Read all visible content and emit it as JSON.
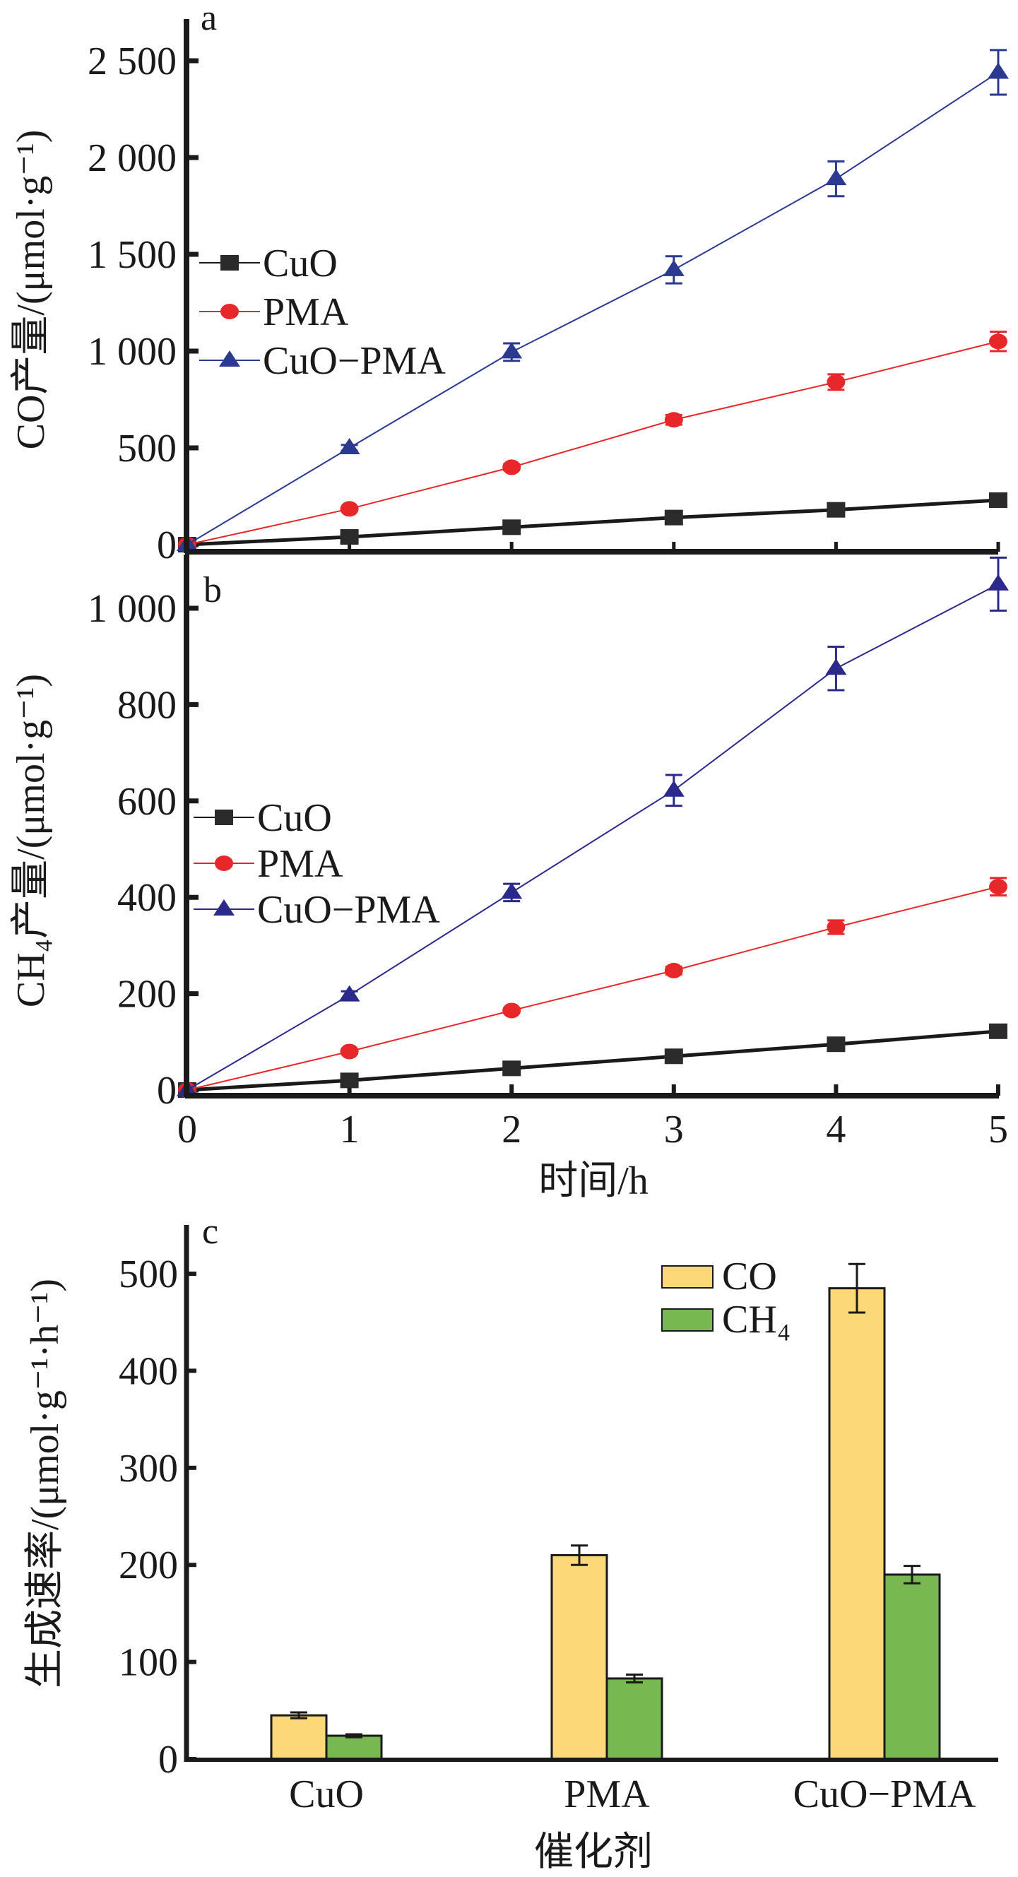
{
  "chart_data": [
    {
      "id": "a",
      "type": "line",
      "panel_label": "a",
      "title": "",
      "xlabel": "",
      "ylabel": "CO产量/(μmol·g⁻¹)",
      "x": [
        0,
        1,
        2,
        3,
        4,
        5
      ],
      "xlim": [
        0,
        5
      ],
      "ylim": [
        0,
        2650
      ],
      "yticks": [
        0,
        500,
        1000,
        1500,
        2000,
        2500
      ],
      "ytick_labels": [
        "0",
        "500",
        "1 000",
        "1 500",
        "2 000",
        "2 500"
      ],
      "legend_position": "center-left",
      "series": [
        {
          "name": "CuO",
          "color": "#1a1a1a",
          "marker": "square",
          "values": [
            0,
            40,
            90,
            140,
            180,
            230
          ],
          "errors": [
            0,
            0,
            0,
            0,
            0,
            0
          ]
        },
        {
          "name": "PMA",
          "color": "#e8272a",
          "marker": "circle",
          "values": [
            0,
            185,
            400,
            645,
            840,
            1050
          ],
          "errors": [
            0,
            10,
            15,
            25,
            40,
            50
          ]
        },
        {
          "name": "CuO−PMA",
          "color": "#2b3990",
          "marker": "triangle",
          "values": [
            0,
            500,
            995,
            1420,
            1890,
            2440
          ],
          "errors": [
            0,
            15,
            45,
            70,
            90,
            115
          ]
        }
      ]
    },
    {
      "id": "b",
      "type": "line",
      "panel_label": "b",
      "title": "",
      "xlabel": "时间/h",
      "ylabel": "CH₄产量/(μmol·g⁻¹)",
      "x": [
        0,
        1,
        2,
        3,
        4,
        5
      ],
      "xlim": [
        0,
        5
      ],
      "xticks": [
        0,
        1,
        2,
        3,
        4,
        5
      ],
      "xtick_labels": [
        "0",
        "1",
        "2",
        "3",
        "4",
        "5"
      ],
      "ylim": [
        0,
        1080
      ],
      "yticks": [
        0,
        200,
        400,
        600,
        800,
        1000
      ],
      "ytick_labels": [
        "0",
        "200",
        "400",
        "600",
        "800",
        "1 000"
      ],
      "legend_position": "center-left",
      "series": [
        {
          "name": "CuO",
          "color": "#1a1a1a",
          "marker": "square",
          "values": [
            0,
            20,
            45,
            70,
            95,
            122
          ],
          "errors": [
            0,
            0,
            0,
            0,
            0,
            0
          ]
        },
        {
          "name": "PMA",
          "color": "#e8272a",
          "marker": "circle",
          "values": [
            0,
            80,
            165,
            248,
            338,
            422
          ],
          "errors": [
            0,
            4,
            5,
            8,
            14,
            18
          ]
        },
        {
          "name": "CuO−PMA",
          "color": "#2b2a8c",
          "marker": "triangle",
          "values": [
            0,
            197,
            410,
            622,
            875,
            1050
          ],
          "errors": [
            0,
            8,
            18,
            32,
            45,
            55
          ]
        }
      ]
    },
    {
      "id": "c",
      "type": "bar",
      "panel_label": "c",
      "title": "",
      "xlabel": "催化剂",
      "ylabel": "生成速率/(μmol·g⁻¹·h⁻¹)",
      "categories": [
        "CuO",
        "PMA",
        "CuO−PMA"
      ],
      "ylim": [
        0,
        550
      ],
      "yticks": [
        0,
        100,
        200,
        300,
        400,
        500
      ],
      "ytick_labels": [
        "0",
        "100",
        "200",
        "300",
        "400",
        "500"
      ],
      "legend_position": "top-right",
      "series": [
        {
          "name": "CO",
          "color": "#fdd878",
          "values": [
            45,
            210,
            485
          ],
          "errors": [
            3,
            10,
            25
          ]
        },
        {
          "name": "CH₄",
          "color": "#78b851",
          "values": [
            24,
            83,
            190
          ],
          "errors": [
            1.5,
            4,
            9
          ]
        }
      ]
    }
  ]
}
